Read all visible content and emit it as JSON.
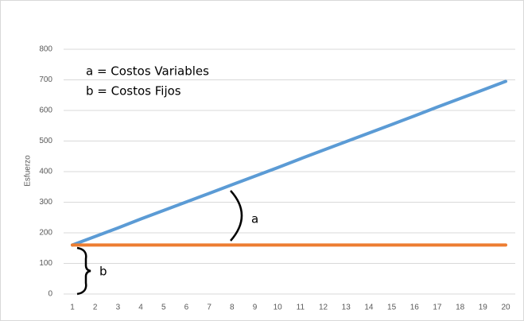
{
  "chart_data": {
    "type": "line",
    "y_label": "Esfuerzo",
    "annotations": [
      "a = Costos Variables",
      "b = Costos Fijos",
      "a",
      "b"
    ],
    "x": [
      1,
      2,
      3,
      4,
      5,
      6,
      7,
      8,
      9,
      10,
      11,
      12,
      13,
      14,
      15,
      16,
      17,
      18,
      19,
      20
    ],
    "xlim": [
      1,
      20
    ],
    "xticks": [
      1,
      2,
      3,
      4,
      5,
      6,
      7,
      8,
      9,
      10,
      11,
      12,
      13,
      14,
      15,
      16,
      17,
      18,
      19,
      20
    ],
    "ylim": [
      0,
      800
    ],
    "yticks": [
      0,
      100,
      200,
      300,
      400,
      500,
      600,
      700,
      800
    ],
    "grid": true,
    "series": [
      {
        "color": "#5b9bd5",
        "values": [
          160,
          188,
          216,
          245,
          273,
          301,
          329,
          357,
          385,
          413,
          442,
          470,
          498,
          526,
          554,
          582,
          611,
          639,
          667,
          695
        ]
      },
      {
        "color": "#ed7d31",
        "values": [
          160,
          160,
          160,
          160,
          160,
          160,
          160,
          160,
          160,
          160,
          160,
          160,
          160,
          160,
          160,
          160,
          160,
          160,
          160,
          160
        ]
      }
    ]
  }
}
